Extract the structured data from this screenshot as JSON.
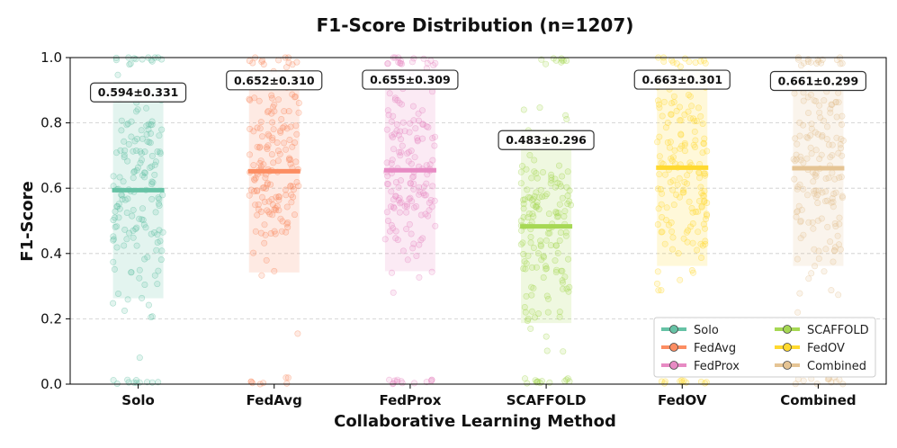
{
  "chart_data": {
    "type": "strip",
    "title": "F1-Score Distribution (n=1207)",
    "xlabel": "Collaborative Learning Method",
    "ylabel": "F1-Score",
    "ylim": [
      0,
      1
    ],
    "yticks": [
      "0.0",
      "0.2",
      "0.4",
      "0.6",
      "0.8",
      "1.0"
    ],
    "grid": "horizontal dashed",
    "legend_position": "bottom-right",
    "series": [
      {
        "name": "Solo",
        "mean": 0.594,
        "std": 0.331,
        "label": "0.594±0.331",
        "color": "#66c2a5"
      },
      {
        "name": "FedAvg",
        "mean": 0.652,
        "std": 0.31,
        "label": "0.652±0.310",
        "color": "#fc8d62"
      },
      {
        "name": "FedProx",
        "mean": 0.655,
        "std": 0.309,
        "label": "0.655±0.309",
        "color": "#e78ac3"
      },
      {
        "name": "SCAFFOLD",
        "mean": 0.483,
        "std": 0.296,
        "label": "0.483±0.296",
        "color": "#a6d854"
      },
      {
        "name": "FedOV",
        "mean": 0.663,
        "std": 0.301,
        "label": "0.663±0.301",
        "color": "#ffd92f"
      },
      {
        "name": "Combined",
        "mean": 0.661,
        "std": 0.299,
        "label": "0.661±0.299",
        "color": "#e5c494"
      }
    ]
  }
}
